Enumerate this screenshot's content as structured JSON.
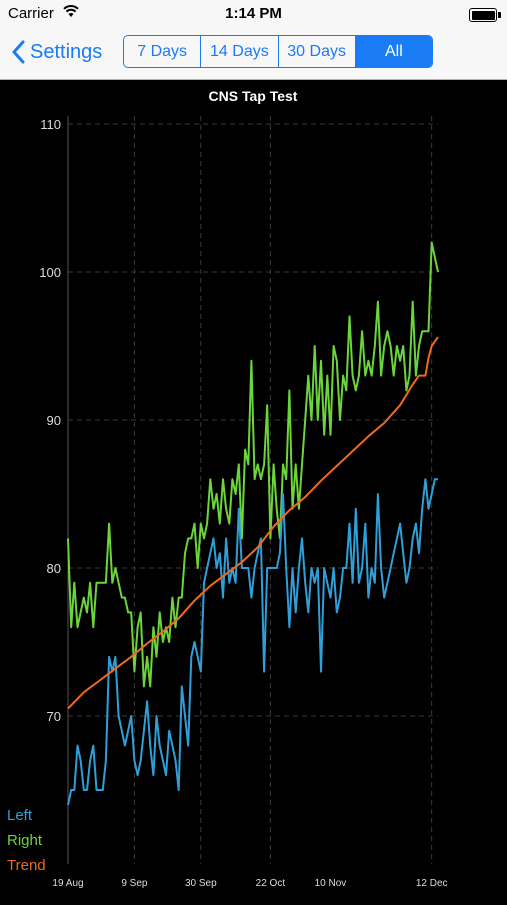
{
  "status_bar": {
    "carrier": "Carrier",
    "time": "1:14 PM"
  },
  "nav": {
    "back_label": "Settings",
    "segments": [
      "7 Days",
      "14 Days",
      "30 Days",
      "All"
    ],
    "selected_segment": "All",
    "accent_color": "#1a7cf5"
  },
  "chart_data": {
    "type": "line",
    "title": "CNS Tap Test",
    "ylim": [
      60,
      110
    ],
    "yticks": [
      70,
      80,
      90,
      100,
      110
    ],
    "x_range": [
      "2014-08-19",
      "2014-12-14"
    ],
    "x_ticks": [
      {
        "date": "2014-08-19",
        "label": "19 Aug"
      },
      {
        "date": "2014-09-09",
        "label": "9 Sep"
      },
      {
        "date": "2014-09-30",
        "label": "30 Sep"
      },
      {
        "date": "2014-10-22",
        "label": "22 Oct"
      },
      {
        "date": "2014-11-10",
        "label": "10 Nov"
      },
      {
        "date": "2014-12-12",
        "label": "12 Dec"
      }
    ],
    "vertical_gridlines": [
      "2014-09-09",
      "2014-09-30",
      "2014-10-22",
      "2014-12-12"
    ],
    "series": [
      {
        "name": "Right",
        "color": "#6cd53b",
        "points": [
          [
            "2014-08-19",
            82
          ],
          [
            "2014-08-20",
            76
          ],
          [
            "2014-08-21",
            79
          ],
          [
            "2014-08-22",
            76
          ],
          [
            "2014-08-24",
            78
          ],
          [
            "2014-08-25",
            77
          ],
          [
            "2014-08-26",
            79
          ],
          [
            "2014-08-27",
            76
          ],
          [
            "2014-08-28",
            79
          ],
          [
            "2014-08-29",
            79
          ],
          [
            "2014-08-30",
            79
          ],
          [
            "2014-08-31",
            79
          ],
          [
            "2014-09-01",
            83
          ],
          [
            "2014-09-02",
            79
          ],
          [
            "2014-09-03",
            80
          ],
          [
            "2014-09-04",
            79
          ],
          [
            "2014-09-05",
            78
          ],
          [
            "2014-09-06",
            78
          ],
          [
            "2014-09-07",
            77
          ],
          [
            "2014-09-08",
            77
          ],
          [
            "2014-09-09",
            73
          ],
          [
            "2014-09-10",
            76
          ],
          [
            "2014-09-11",
            77
          ],
          [
            "2014-09-12",
            72
          ],
          [
            "2014-09-13",
            74
          ],
          [
            "2014-09-14",
            72
          ],
          [
            "2014-09-15",
            76
          ],
          [
            "2014-09-16",
            74
          ],
          [
            "2014-09-17",
            77
          ],
          [
            "2014-09-18",
            75
          ],
          [
            "2014-09-19",
            76
          ],
          [
            "2014-09-20",
            75
          ],
          [
            "2014-09-21",
            78
          ],
          [
            "2014-09-22",
            76
          ],
          [
            "2014-09-23",
            78
          ],
          [
            "2014-09-24",
            78
          ],
          [
            "2014-09-25",
            81
          ],
          [
            "2014-09-26",
            82
          ],
          [
            "2014-09-27",
            82
          ],
          [
            "2014-09-28",
            83
          ],
          [
            "2014-09-29",
            80
          ],
          [
            "2014-09-30",
            83
          ],
          [
            "2014-10-01",
            82
          ],
          [
            "2014-10-02",
            83
          ],
          [
            "2014-10-03",
            86
          ],
          [
            "2014-10-04",
            84
          ],
          [
            "2014-10-05",
            85
          ],
          [
            "2014-10-06",
            83
          ],
          [
            "2014-10-07",
            86
          ],
          [
            "2014-10-08",
            84
          ],
          [
            "2014-10-09",
            83
          ],
          [
            "2014-10-10",
            86
          ],
          [
            "2014-10-11",
            85
          ],
          [
            "2014-10-12",
            87
          ],
          [
            "2014-10-13",
            82
          ],
          [
            "2014-10-14",
            88
          ],
          [
            "2014-10-15",
            87
          ],
          [
            "2014-10-16",
            94
          ],
          [
            "2014-10-17",
            86
          ],
          [
            "2014-10-18",
            87
          ],
          [
            "2014-10-19",
            86
          ],
          [
            "2014-10-20",
            87
          ],
          [
            "2014-10-21",
            91
          ],
          [
            "2014-10-22",
            82
          ],
          [
            "2014-10-23",
            87
          ],
          [
            "2014-10-24",
            84
          ],
          [
            "2014-10-25",
            82
          ],
          [
            "2014-10-26",
            87
          ],
          [
            "2014-10-27",
            86
          ],
          [
            "2014-10-28",
            92
          ],
          [
            "2014-10-29",
            84
          ],
          [
            "2014-10-30",
            87
          ],
          [
            "2014-10-31",
            84
          ],
          [
            "2014-11-01",
            87
          ],
          [
            "2014-11-02",
            90
          ],
          [
            "2014-11-03",
            93
          ],
          [
            "2014-11-04",
            90
          ],
          [
            "2014-11-05",
            95
          ],
          [
            "2014-11-06",
            90
          ],
          [
            "2014-11-07",
            94
          ],
          [
            "2014-11-08",
            89
          ],
          [
            "2014-11-09",
            93
          ],
          [
            "2014-11-10",
            89
          ],
          [
            "2014-11-11",
            95
          ],
          [
            "2014-11-12",
            94
          ],
          [
            "2014-11-13",
            90
          ],
          [
            "2014-11-14",
            93
          ],
          [
            "2014-11-15",
            92
          ],
          [
            "2014-11-16",
            97
          ],
          [
            "2014-11-17",
            93
          ],
          [
            "2014-11-18",
            92
          ],
          [
            "2014-11-19",
            93
          ],
          [
            "2014-11-20",
            96
          ],
          [
            "2014-11-21",
            93
          ],
          [
            "2014-11-22",
            94
          ],
          [
            "2014-11-23",
            93
          ],
          [
            "2014-11-24",
            95
          ],
          [
            "2014-11-25",
            98
          ],
          [
            "2014-11-26",
            93
          ],
          [
            "2014-11-27",
            95
          ],
          [
            "2014-11-28",
            96
          ],
          [
            "2014-11-29",
            95
          ],
          [
            "2014-11-30",
            93
          ],
          [
            "2014-12-01",
            95
          ],
          [
            "2014-12-02",
            94
          ],
          [
            "2014-12-03",
            95
          ],
          [
            "2014-12-04",
            92
          ],
          [
            "2014-12-05",
            93
          ],
          [
            "2014-12-06",
            98
          ],
          [
            "2014-12-07",
            93
          ],
          [
            "2014-12-08",
            95
          ],
          [
            "2014-12-09",
            96
          ],
          [
            "2014-12-10",
            96
          ],
          [
            "2014-12-11",
            96
          ],
          [
            "2014-12-12",
            102
          ],
          [
            "2014-12-13",
            101
          ],
          [
            "2014-12-14",
            100
          ]
        ]
      },
      {
        "name": "Left",
        "color": "#2f9fd9",
        "points": [
          [
            "2014-08-19",
            64
          ],
          [
            "2014-08-20",
            65
          ],
          [
            "2014-08-21",
            65
          ],
          [
            "2014-08-22",
            68
          ],
          [
            "2014-08-23",
            67
          ],
          [
            "2014-08-24",
            65
          ],
          [
            "2014-08-25",
            65
          ],
          [
            "2014-08-26",
            67
          ],
          [
            "2014-08-27",
            68
          ],
          [
            "2014-08-28",
            65
          ],
          [
            "2014-08-29",
            65
          ],
          [
            "2014-08-30",
            65
          ],
          [
            "2014-08-31",
            67
          ],
          [
            "2014-09-01",
            74
          ],
          [
            "2014-09-02",
            73
          ],
          [
            "2014-09-03",
            74
          ],
          [
            "2014-09-04",
            70
          ],
          [
            "2014-09-05",
            69
          ],
          [
            "2014-09-06",
            68
          ],
          [
            "2014-09-07",
            69
          ],
          [
            "2014-09-08",
            70
          ],
          [
            "2014-09-09",
            67
          ],
          [
            "2014-09-10",
            66
          ],
          [
            "2014-09-11",
            67
          ],
          [
            "2014-09-12",
            69
          ],
          [
            "2014-09-13",
            71
          ],
          [
            "2014-09-14",
            68
          ],
          [
            "2014-09-15",
            66
          ],
          [
            "2014-09-16",
            70
          ],
          [
            "2014-09-17",
            68
          ],
          [
            "2014-09-18",
            67
          ],
          [
            "2014-09-19",
            66
          ],
          [
            "2014-09-20",
            69
          ],
          [
            "2014-09-21",
            68
          ],
          [
            "2014-09-22",
            67
          ],
          [
            "2014-09-23",
            65
          ],
          [
            "2014-09-24",
            72
          ],
          [
            "2014-09-25",
            70
          ],
          [
            "2014-09-26",
            68
          ],
          [
            "2014-09-27",
            74
          ],
          [
            "2014-09-28",
            75
          ],
          [
            "2014-09-29",
            74
          ],
          [
            "2014-09-30",
            73
          ],
          [
            "2014-10-01",
            79
          ],
          [
            "2014-10-02",
            80
          ],
          [
            "2014-10-03",
            81
          ],
          [
            "2014-10-04",
            82
          ],
          [
            "2014-10-05",
            80
          ],
          [
            "2014-10-06",
            81
          ],
          [
            "2014-10-07",
            78
          ],
          [
            "2014-10-08",
            82
          ],
          [
            "2014-10-09",
            79
          ],
          [
            "2014-10-10",
            80
          ],
          [
            "2014-10-11",
            79
          ],
          [
            "2014-10-12",
            84
          ],
          [
            "2014-10-13",
            80
          ],
          [
            "2014-10-14",
            80
          ],
          [
            "2014-10-15",
            80
          ],
          [
            "2014-10-16",
            78
          ],
          [
            "2014-10-17",
            80
          ],
          [
            "2014-10-18",
            81
          ],
          [
            "2014-10-19",
            82
          ],
          [
            "2014-10-20",
            73
          ],
          [
            "2014-10-21",
            80
          ],
          [
            "2014-10-22",
            80
          ],
          [
            "2014-10-23",
            80
          ],
          [
            "2014-10-24",
            80
          ],
          [
            "2014-10-25",
            81
          ],
          [
            "2014-10-26",
            85
          ],
          [
            "2014-10-27",
            80
          ],
          [
            "2014-10-28",
            76
          ],
          [
            "2014-10-29",
            80
          ],
          [
            "2014-10-30",
            77
          ],
          [
            "2014-10-31",
            80
          ],
          [
            "2014-11-01",
            82
          ],
          [
            "2014-11-02",
            79
          ],
          [
            "2014-11-03",
            77
          ],
          [
            "2014-11-04",
            80
          ],
          [
            "2014-11-05",
            79
          ],
          [
            "2014-11-06",
            80
          ],
          [
            "2014-11-07",
            73
          ],
          [
            "2014-11-08",
            80
          ],
          [
            "2014-11-09",
            79
          ],
          [
            "2014-11-10",
            78
          ],
          [
            "2014-11-11",
            80
          ],
          [
            "2014-11-12",
            77
          ],
          [
            "2014-11-13",
            78
          ],
          [
            "2014-11-14",
            80
          ],
          [
            "2014-11-15",
            80
          ],
          [
            "2014-11-16",
            83
          ],
          [
            "2014-11-17",
            79
          ],
          [
            "2014-11-18",
            84
          ],
          [
            "2014-11-19",
            79
          ],
          [
            "2014-11-20",
            80
          ],
          [
            "2014-11-21",
            83
          ],
          [
            "2014-11-22",
            78
          ],
          [
            "2014-11-23",
            80
          ],
          [
            "2014-11-24",
            79
          ],
          [
            "2014-11-25",
            85
          ],
          [
            "2014-11-26",
            80
          ],
          [
            "2014-11-27",
            78
          ],
          [
            "2014-11-28",
            79
          ],
          [
            "2014-11-29",
            80
          ],
          [
            "2014-11-30",
            81
          ],
          [
            "2014-12-01",
            82
          ],
          [
            "2014-12-02",
            83
          ],
          [
            "2014-12-03",
            81
          ],
          [
            "2014-12-04",
            79
          ],
          [
            "2014-12-05",
            80
          ],
          [
            "2014-12-06",
            82
          ],
          [
            "2014-12-07",
            83
          ],
          [
            "2014-12-08",
            81
          ],
          [
            "2014-12-09",
            84
          ],
          [
            "2014-12-10",
            86
          ],
          [
            "2014-12-11",
            84
          ],
          [
            "2014-12-12",
            85
          ],
          [
            "2014-12-13",
            86
          ],
          [
            "2014-12-14",
            86
          ]
        ]
      },
      {
        "name": "Trend",
        "color": "#ef6a1e",
        "points": [
          [
            "2014-08-19",
            70.5
          ],
          [
            "2014-08-24",
            71.6
          ],
          [
            "2014-08-29",
            72.4
          ],
          [
            "2014-09-03",
            73.2
          ],
          [
            "2014-09-08",
            74.0
          ],
          [
            "2014-09-13",
            74.9
          ],
          [
            "2014-09-18",
            75.7
          ],
          [
            "2014-09-23",
            76.6
          ],
          [
            "2014-09-28",
            77.8
          ],
          [
            "2014-10-03",
            78.8
          ],
          [
            "2014-10-08",
            79.6
          ],
          [
            "2014-10-13",
            80.4
          ],
          [
            "2014-10-18",
            81.4
          ],
          [
            "2014-10-23",
            82.8
          ],
          [
            "2014-10-28",
            83.9
          ],
          [
            "2014-11-02",
            84.8
          ],
          [
            "2014-11-07",
            85.9
          ],
          [
            "2014-11-12",
            86.9
          ],
          [
            "2014-11-17",
            87.9
          ],
          [
            "2014-11-22",
            88.9
          ],
          [
            "2014-11-27",
            89.8
          ],
          [
            "2014-12-02",
            91.0
          ],
          [
            "2014-12-06",
            92.4
          ],
          [
            "2014-12-08",
            93.0
          ],
          [
            "2014-12-10",
            93.0
          ],
          [
            "2014-12-11",
            94.2
          ],
          [
            "2014-12-12",
            95.0
          ],
          [
            "2014-12-13",
            95.3
          ],
          [
            "2014-12-14",
            95.6
          ]
        ]
      }
    ],
    "legend": [
      "Left",
      "Right",
      "Trend"
    ],
    "grid": true
  }
}
